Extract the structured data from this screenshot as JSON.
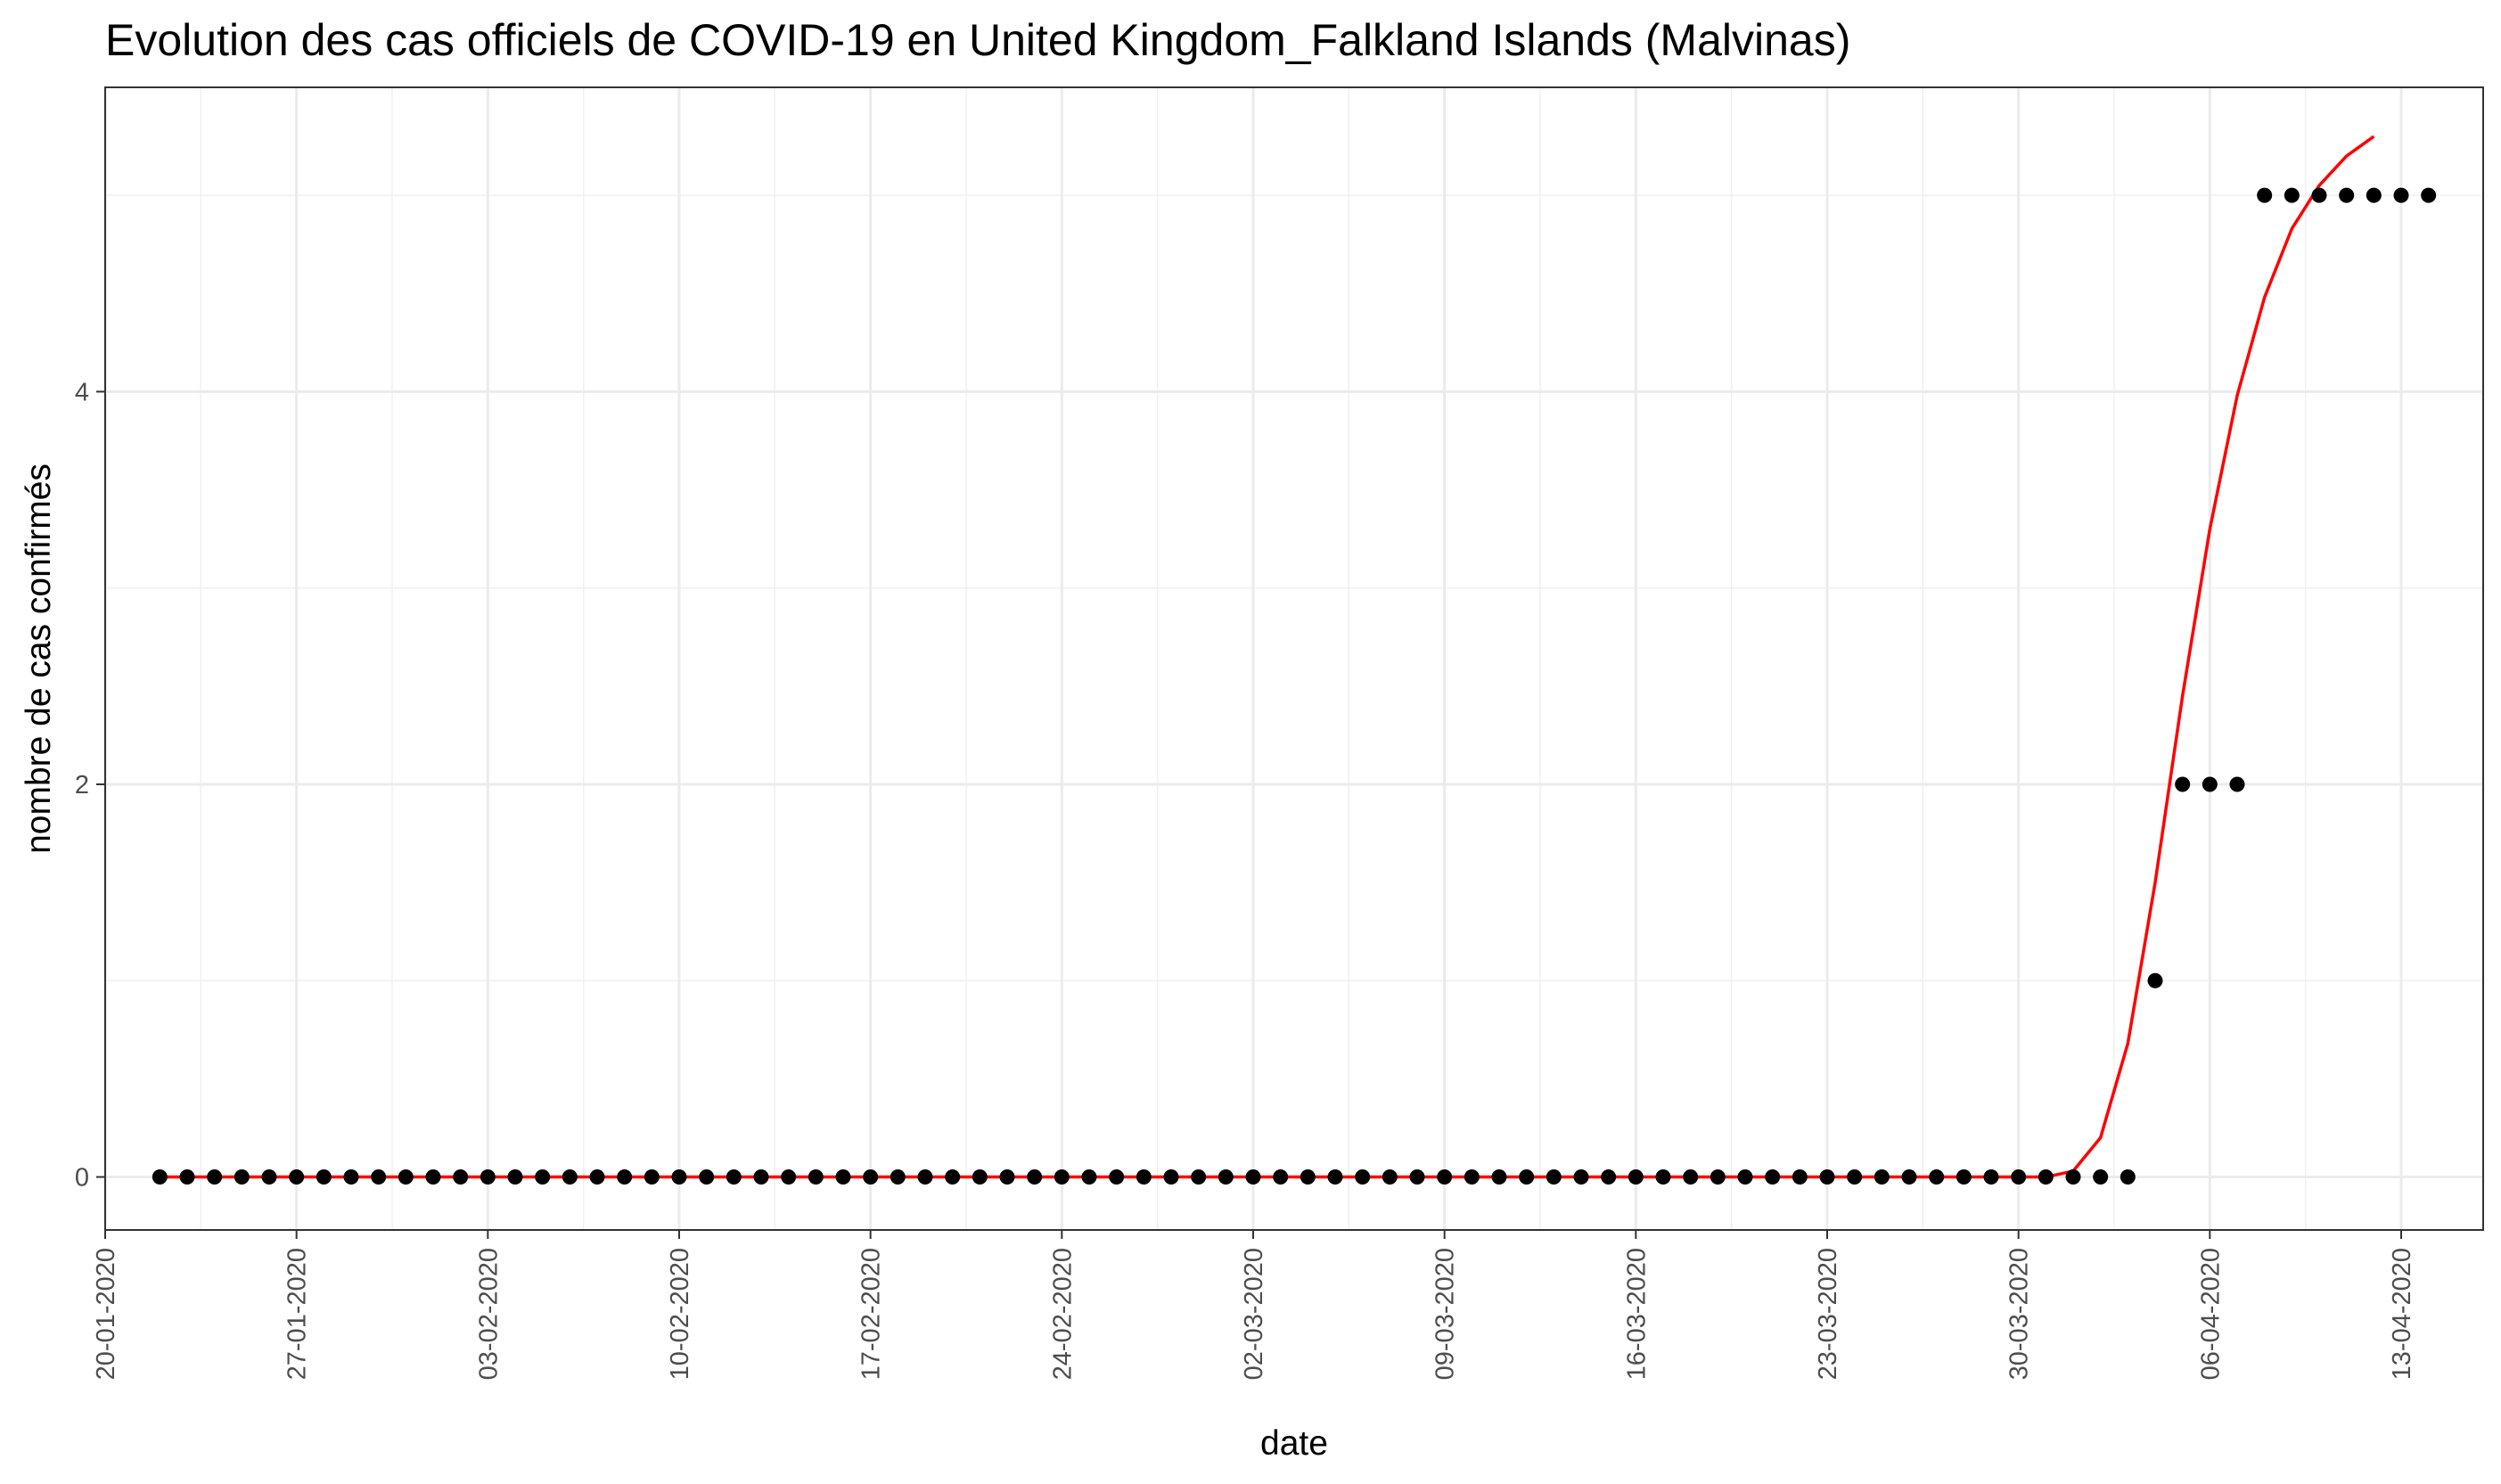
{
  "chart_data": {
    "type": "scatter",
    "title": "Evolution des cas officiels de COVID-19 en United Kingdom_Falkland Islands (Malvinas)",
    "xlabel": "date",
    "ylabel": "nombre de cas confirmés",
    "x_axis_type": "date",
    "xlim": [
      "2020-01-20",
      "2020-04-16"
    ],
    "ylim": [
      -0.27,
      5.55
    ],
    "x_ticks": [
      {
        "date": "2020-01-20",
        "label": "20-01-2020"
      },
      {
        "date": "2020-01-27",
        "label": "27-01-2020"
      },
      {
        "date": "2020-02-03",
        "label": "03-02-2020"
      },
      {
        "date": "2020-02-10",
        "label": "10-02-2020"
      },
      {
        "date": "2020-02-17",
        "label": "17-02-2020"
      },
      {
        "date": "2020-02-24",
        "label": "24-02-2020"
      },
      {
        "date": "2020-03-02",
        "label": "02-03-2020"
      },
      {
        "date": "2020-03-09",
        "label": "09-03-2020"
      },
      {
        "date": "2020-03-16",
        "label": "16-03-2020"
      },
      {
        "date": "2020-03-23",
        "label": "23-03-2020"
      },
      {
        "date": "2020-03-30",
        "label": "30-03-2020"
      },
      {
        "date": "2020-04-06",
        "label": "06-04-2020"
      },
      {
        "date": "2020-04-13",
        "label": "13-04-2020"
      }
    ],
    "y_ticks": [
      {
        "value": 0,
        "label": "0"
      },
      {
        "value": 2,
        "label": "2"
      },
      {
        "value": 4,
        "label": "4"
      }
    ],
    "y_minor_gridlines": [
      1,
      3,
      5
    ],
    "grid": true,
    "series": [
      {
        "kind": "points",
        "color": "#000000",
        "start_date": "2020-01-22",
        "values": [
          0,
          0,
          0,
          0,
          0,
          0,
          0,
          0,
          0,
          0,
          0,
          0,
          0,
          0,
          0,
          0,
          0,
          0,
          0,
          0,
          0,
          0,
          0,
          0,
          0,
          0,
          0,
          0,
          0,
          0,
          0,
          0,
          0,
          0,
          0,
          0,
          0,
          0,
          0,
          0,
          0,
          0,
          0,
          0,
          0,
          0,
          0,
          0,
          0,
          0,
          0,
          0,
          0,
          0,
          0,
          0,
          0,
          0,
          0,
          0,
          0,
          0,
          0,
          0,
          0,
          0,
          0,
          0,
          0,
          0,
          0,
          0,
          0,
          1,
          2,
          2,
          2,
          5,
          5,
          5,
          5,
          5,
          5,
          5
        ]
      },
      {
        "kind": "line",
        "color": "#ff0000",
        "start_date": "2020-01-22",
        "values": [
          0,
          0,
          0,
          0,
          0,
          0,
          0,
          0,
          0,
          0,
          0,
          0,
          0,
          0,
          0,
          0,
          0,
          0,
          0,
          0,
          0,
          0,
          0,
          0,
          0,
          0,
          0,
          0,
          0,
          0,
          0,
          0,
          0,
          0,
          0,
          0,
          0,
          0,
          0,
          0,
          0,
          0,
          0,
          0,
          0,
          0,
          0,
          0,
          0,
          0,
          0,
          0,
          0,
          0,
          0,
          0,
          0,
          0,
          0,
          0,
          0,
          0,
          0,
          0,
          0,
          0,
          0,
          0,
          0,
          0,
          0.03,
          0.2,
          0.68,
          1.5,
          2.45,
          3.3,
          3.98,
          4.48,
          4.83,
          5.05,
          5.2,
          5.3
        ]
      }
    ]
  }
}
